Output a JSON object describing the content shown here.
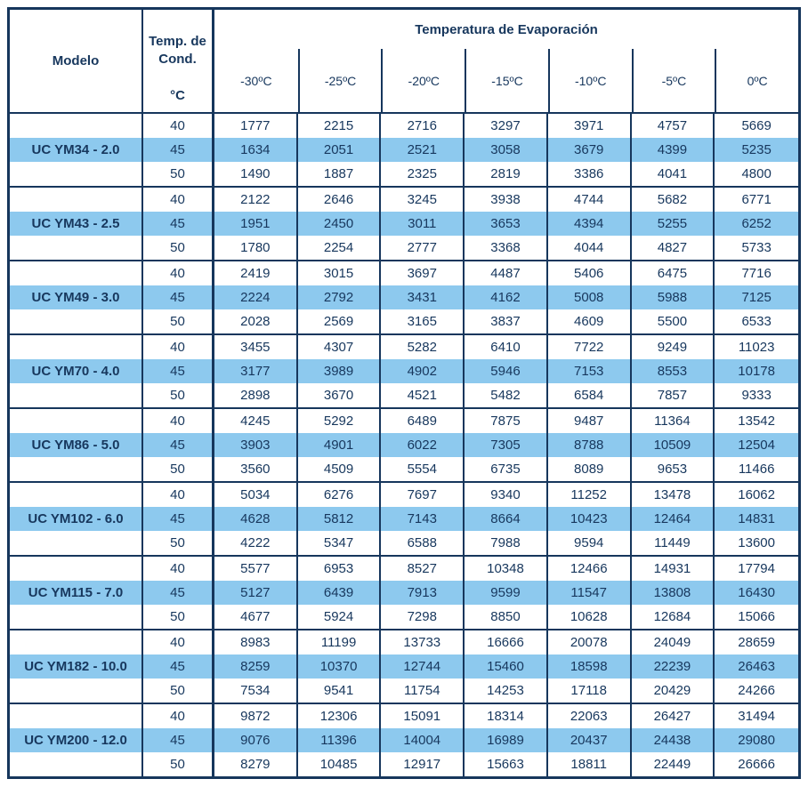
{
  "colors": {
    "navy": "#16365C",
    "text": "#17375D",
    "row_highlight": "#8DC9EE"
  },
  "header": {
    "modelo": "Modelo",
    "cond_line1": "Temp. de",
    "cond_line2": "Cond.",
    "cond_unit": "°C",
    "evap_title": "Temperatura de Evaporación",
    "evap_temps": [
      "-30ºC",
      "-25ºC",
      "-20ºC",
      "-15ºC",
      "-10ºC",
      "-5ºC",
      "0ºC"
    ]
  },
  "blocks": [
    {
      "model": "UC YM34 - 2.0",
      "rows": [
        {
          "cond": "40",
          "values": [
            "1777",
            "2215",
            "2716",
            "3297",
            "3971",
            "4757",
            "5669"
          ]
        },
        {
          "cond": "45",
          "values": [
            "1634",
            "2051",
            "2521",
            "3058",
            "3679",
            "4399",
            "5235"
          ]
        },
        {
          "cond": "50",
          "values": [
            "1490",
            "1887",
            "2325",
            "2819",
            "3386",
            "4041",
            "4800"
          ]
        }
      ]
    },
    {
      "model": "UC YM43 - 2.5",
      "rows": [
        {
          "cond": "40",
          "values": [
            "2122",
            "2646",
            "3245",
            "3938",
            "4744",
            "5682",
            "6771"
          ]
        },
        {
          "cond": "45",
          "values": [
            "1951",
            "2450",
            "3011",
            "3653",
            "4394",
            "5255",
            "6252"
          ]
        },
        {
          "cond": "50",
          "values": [
            "1780",
            "2254",
            "2777",
            "3368",
            "4044",
            "4827",
            "5733"
          ]
        }
      ]
    },
    {
      "model": "UC YM49 - 3.0",
      "rows": [
        {
          "cond": "40",
          "values": [
            "2419",
            "3015",
            "3697",
            "4487",
            "5406",
            "6475",
            "7716"
          ]
        },
        {
          "cond": "45",
          "values": [
            "2224",
            "2792",
            "3431",
            "4162",
            "5008",
            "5988",
            "7125"
          ]
        },
        {
          "cond": "50",
          "values": [
            "2028",
            "2569",
            "3165",
            "3837",
            "4609",
            "5500",
            "6533"
          ]
        }
      ]
    },
    {
      "model": "UC YM70 - 4.0",
      "rows": [
        {
          "cond": "40",
          "values": [
            "3455",
            "4307",
            "5282",
            "6410",
            "7722",
            "9249",
            "11023"
          ]
        },
        {
          "cond": "45",
          "values": [
            "3177",
            "3989",
            "4902",
            "5946",
            "7153",
            "8553",
            "10178"
          ]
        },
        {
          "cond": "50",
          "values": [
            "2898",
            "3670",
            "4521",
            "5482",
            "6584",
            "7857",
            "9333"
          ]
        }
      ]
    },
    {
      "model": "UC YM86 - 5.0",
      "rows": [
        {
          "cond": "40",
          "values": [
            "4245",
            "5292",
            "6489",
            "7875",
            "9487",
            "11364",
            "13542"
          ]
        },
        {
          "cond": "45",
          "values": [
            "3903",
            "4901",
            "6022",
            "7305",
            "8788",
            "10509",
            "12504"
          ]
        },
        {
          "cond": "50",
          "values": [
            "3560",
            "4509",
            "5554",
            "6735",
            "8089",
            "9653",
            "11466"
          ]
        }
      ]
    },
    {
      "model": "UC YM102 - 6.0",
      "rows": [
        {
          "cond": "40",
          "values": [
            "5034",
            "6276",
            "7697",
            "9340",
            "11252",
            "13478",
            "16062"
          ]
        },
        {
          "cond": "45",
          "values": [
            "4628",
            "5812",
            "7143",
            "8664",
            "10423",
            "12464",
            "14831"
          ]
        },
        {
          "cond": "50",
          "values": [
            "4222",
            "5347",
            "6588",
            "7988",
            "9594",
            "11449",
            "13600"
          ]
        }
      ]
    },
    {
      "model": "UC YM115 - 7.0",
      "rows": [
        {
          "cond": "40",
          "values": [
            "5577",
            "6953",
            "8527",
            "10348",
            "12466",
            "14931",
            "17794"
          ]
        },
        {
          "cond": "45",
          "values": [
            "5127",
            "6439",
            "7913",
            "9599",
            "11547",
            "13808",
            "16430"
          ]
        },
        {
          "cond": "50",
          "values": [
            "4677",
            "5924",
            "7298",
            "8850",
            "10628",
            "12684",
            "15066"
          ]
        }
      ]
    },
    {
      "model": "UC YM182 - 10.0",
      "rows": [
        {
          "cond": "40",
          "values": [
            "8983",
            "11199",
            "13733",
            "16666",
            "20078",
            "24049",
            "28659"
          ]
        },
        {
          "cond": "45",
          "values": [
            "8259",
            "10370",
            "12744",
            "15460",
            "18598",
            "22239",
            "26463"
          ]
        },
        {
          "cond": "50",
          "values": [
            "7534",
            "9541",
            "11754",
            "14253",
            "17118",
            "20429",
            "24266"
          ]
        }
      ]
    },
    {
      "model": "UC YM200 - 12.0",
      "rows": [
        {
          "cond": "40",
          "values": [
            "9872",
            "12306",
            "15091",
            "18314",
            "22063",
            "26427",
            "31494"
          ]
        },
        {
          "cond": "45",
          "values": [
            "9076",
            "11396",
            "14004",
            "16989",
            "20437",
            "24438",
            "29080"
          ]
        },
        {
          "cond": "50",
          "values": [
            "8279",
            "10485",
            "12917",
            "15663",
            "18811",
            "22449",
            "26666"
          ]
        }
      ]
    }
  ]
}
